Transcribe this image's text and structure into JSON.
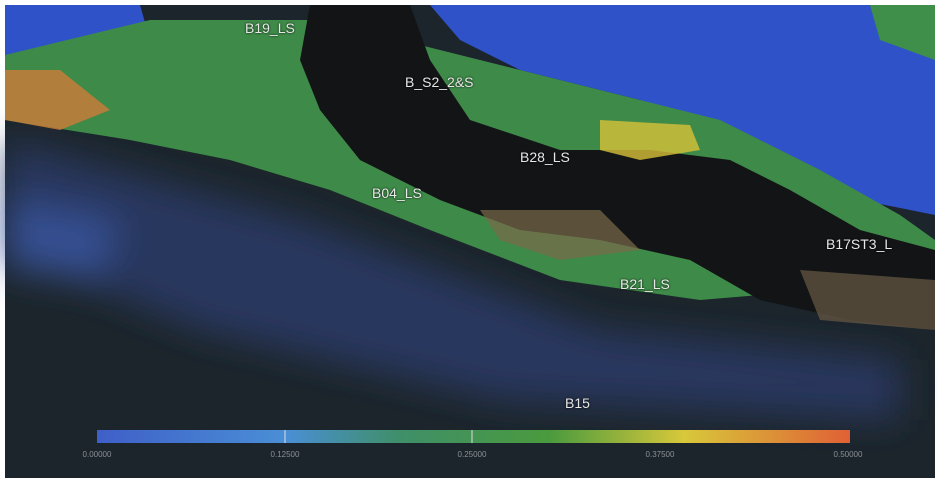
{
  "labels": [
    "B19_LS",
    "B_S2_2&S",
    "B28_LS",
    "B04_LS",
    "B17ST3_L",
    "B21_LS",
    "B15"
  ],
  "colorbar": {
    "ticks": [
      "0.00000",
      "0.12500",
      "0.25000",
      "0.37500",
      "0.50000"
    ]
  }
}
